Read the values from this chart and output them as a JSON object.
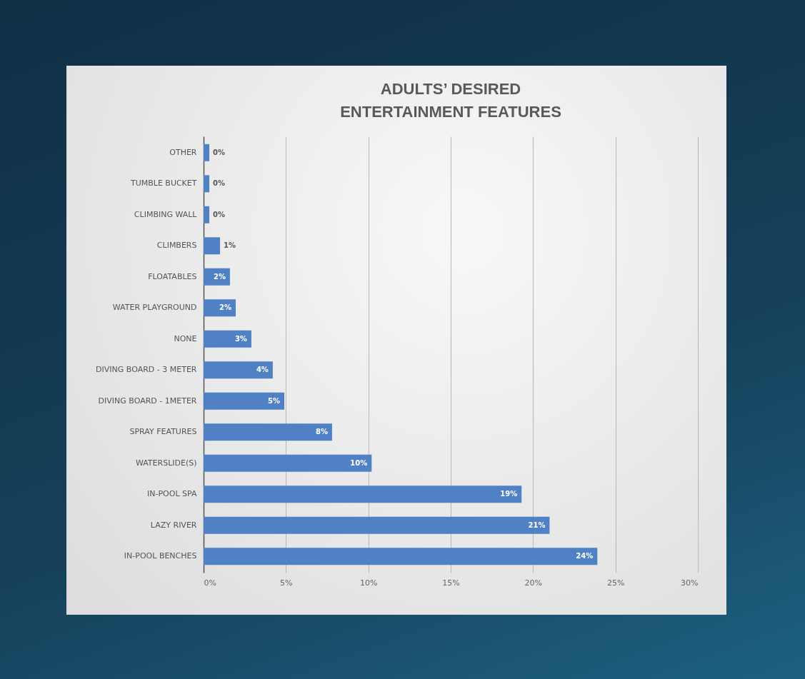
{
  "chart_data": {
    "type": "bar",
    "orientation": "horizontal",
    "title": "ADULTS’ DESIRED\nENTERTAINMENT FEATURES",
    "categories": [
      "OTHER",
      "TUMBLE BUCKET",
      "CLIMBING WALL",
      "CLIMBERS",
      "FLOATABLES",
      "WATER PLAYGROUND",
      "NONE",
      "DIVING BOARD - 3 METER",
      "DIVING BOARD - 1METER",
      "SPRAY FEATURES",
      "WATERSLIDE(S)",
      "IN-POOL SPA",
      "LAZY RIVER",
      "IN-POOL BENCHES"
    ],
    "values": [
      0.35,
      0.35,
      0.35,
      1.0,
      1.6,
      1.95,
      2.9,
      4.2,
      4.9,
      7.8,
      10.2,
      19.3,
      21.0,
      23.9
    ],
    "value_labels": [
      "0%",
      "0%",
      "0%",
      "1%",
      "2%",
      "2%",
      "3%",
      "4%",
      "5%",
      "8%",
      "10%",
      "19%",
      "21%",
      "24%"
    ],
    "color": "#4f81c4",
    "xlim": [
      0,
      30
    ],
    "xticks": [
      {
        "value": 0,
        "label": "0%"
      },
      {
        "value": 5,
        "label": "5%"
      },
      {
        "value": 10,
        "label": "10%"
      },
      {
        "value": 15,
        "label": "15%"
      },
      {
        "value": 20,
        "label": "20%"
      },
      {
        "value": 25,
        "label": "25%"
      },
      {
        "value": 30,
        "label": "30%"
      }
    ],
    "grid": "x"
  }
}
